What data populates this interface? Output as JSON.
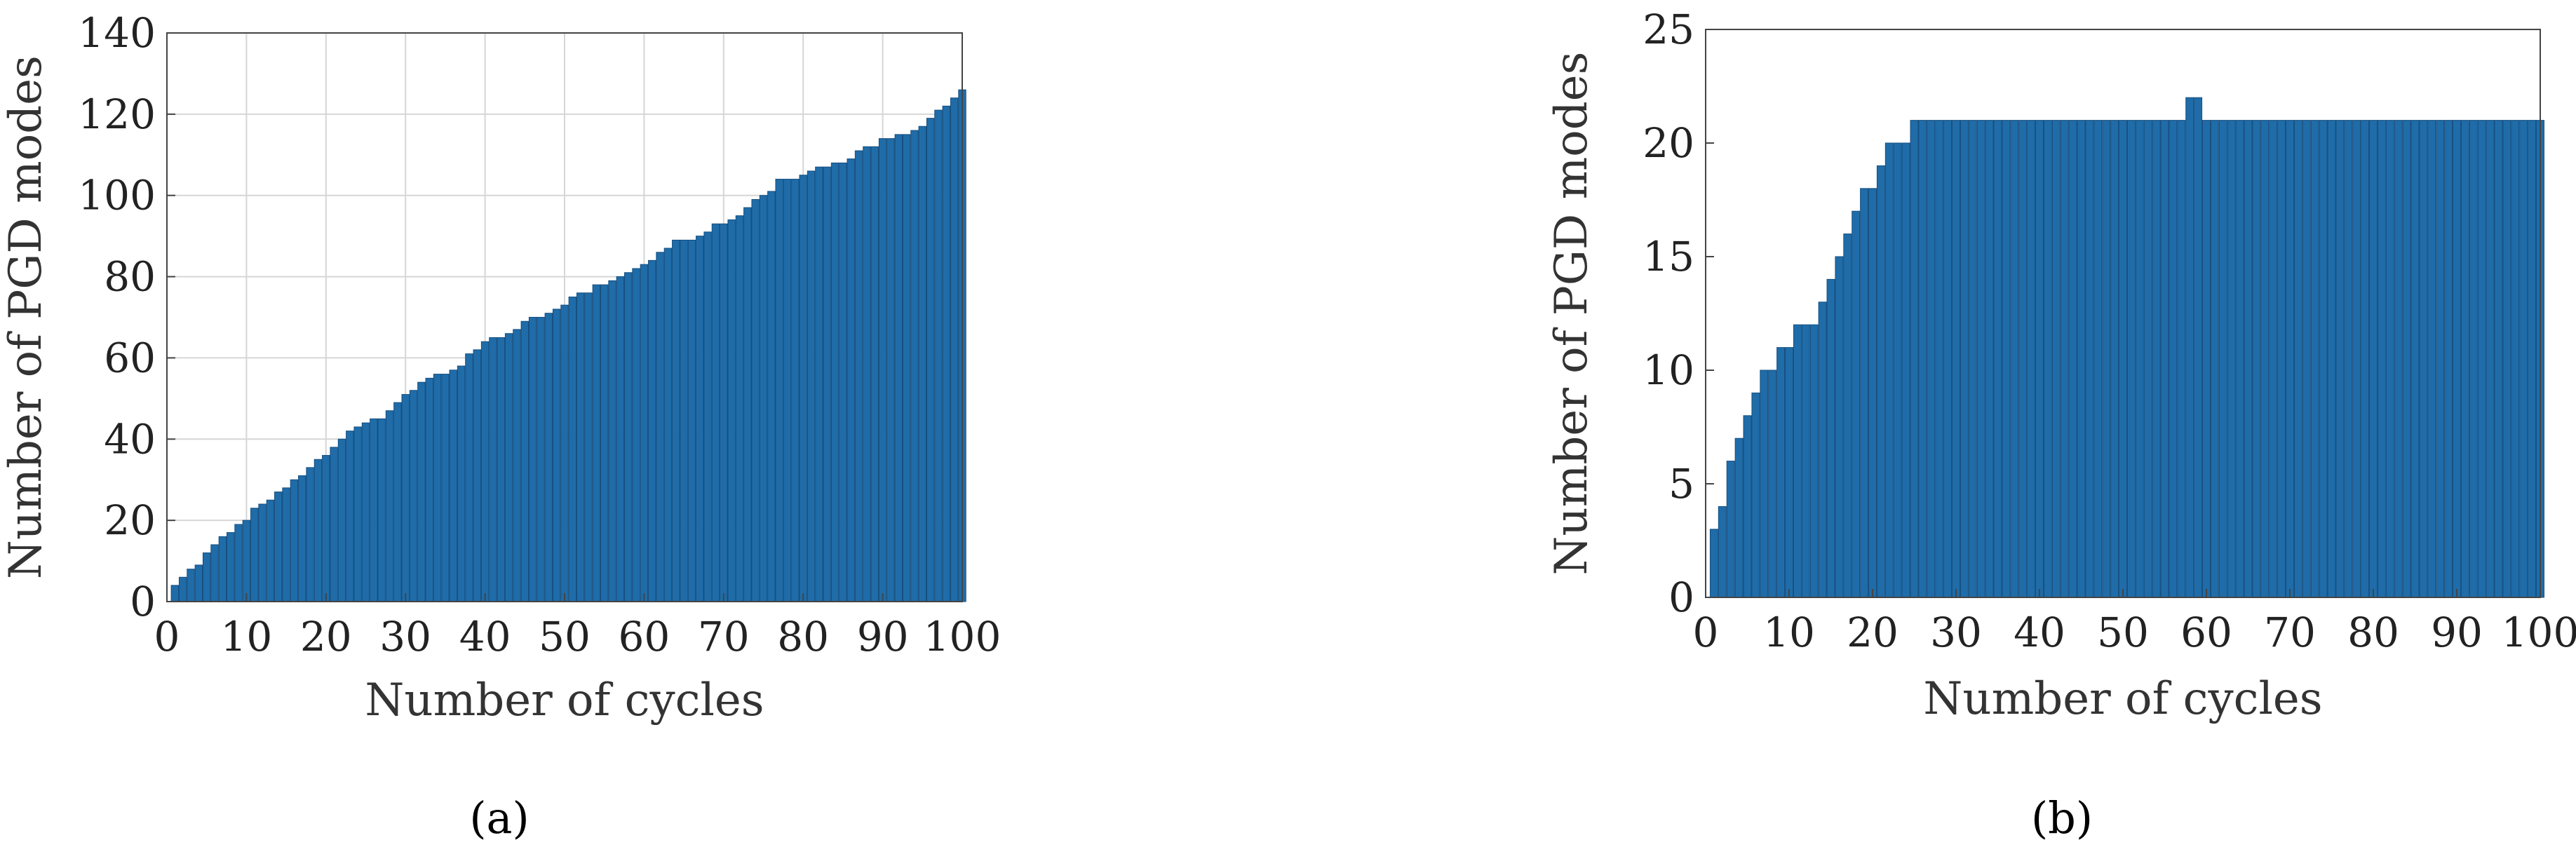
{
  "colors": {
    "bar": "#1f6ca8",
    "bar_edge": "#164f80",
    "grid": "#d6d6d6",
    "axis": "#444444"
  },
  "chart_data": [
    {
      "type": "bar",
      "caption": "(a)",
      "xlabel": "Number of cycles",
      "ylabel": "Number of PGD modes",
      "xlim": [
        0,
        100
      ],
      "ylim": [
        0,
        140
      ],
      "xticks": [
        0,
        10,
        20,
        30,
        40,
        50,
        60,
        70,
        80,
        90,
        100
      ],
      "yticks": [
        0,
        20,
        40,
        60,
        80,
        100,
        120,
        140
      ],
      "grid": true,
      "x": [
        1,
        2,
        3,
        4,
        5,
        6,
        7,
        8,
        9,
        10,
        11,
        12,
        13,
        14,
        15,
        16,
        17,
        18,
        19,
        20,
        21,
        22,
        23,
        24,
        25,
        26,
        27,
        28,
        29,
        30,
        31,
        32,
        33,
        34,
        35,
        36,
        37,
        38,
        39,
        40,
        41,
        42,
        43,
        44,
        45,
        46,
        47,
        48,
        49,
        50,
        51,
        52,
        53,
        54,
        55,
        56,
        57,
        58,
        59,
        60,
        61,
        62,
        63,
        64,
        65,
        66,
        67,
        68,
        69,
        70,
        71,
        72,
        73,
        74,
        75,
        76,
        77,
        78,
        79,
        80,
        81,
        82,
        83,
        84,
        85,
        86,
        87,
        88,
        89,
        90,
        91,
        92,
        93,
        94,
        95,
        96,
        97,
        98,
        99,
        100
      ],
      "values": [
        4,
        6,
        8,
        9,
        12,
        14,
        16,
        17,
        19,
        20,
        23,
        24,
        25,
        27,
        28,
        30,
        31,
        33,
        35,
        36,
        38,
        40,
        42,
        43,
        44,
        45,
        45,
        47,
        49,
        51,
        52,
        54,
        55,
        56,
        56,
        57,
        58,
        61,
        62,
        64,
        65,
        65,
        66,
        67,
        69,
        70,
        70,
        71,
        72,
        73,
        75,
        76,
        76,
        78,
        78,
        79,
        80,
        81,
        82,
        83,
        84,
        86,
        87,
        89,
        89,
        89,
        90,
        91,
        93,
        93,
        94,
        95,
        97,
        99,
        100,
        101,
        104,
        104,
        104,
        105,
        106,
        107,
        107,
        108,
        108,
        109,
        111,
        112,
        112,
        114,
        114,
        115,
        115,
        116,
        117,
        119,
        121,
        122,
        124,
        126
      ]
    },
    {
      "type": "bar",
      "caption": "(b)",
      "xlabel": "Number of cycles",
      "ylabel": "Number of PGD modes",
      "xlim": [
        0,
        100
      ],
      "ylim": [
        0,
        25
      ],
      "xticks": [
        0,
        10,
        20,
        30,
        40,
        50,
        60,
        70,
        80,
        90,
        100
      ],
      "yticks": [
        0,
        5,
        10,
        15,
        20,
        25
      ],
      "grid": false,
      "x": [
        1,
        2,
        3,
        4,
        5,
        6,
        7,
        8,
        9,
        10,
        11,
        12,
        13,
        14,
        15,
        16,
        17,
        18,
        19,
        20,
        21,
        22,
        23,
        24,
        25,
        26,
        27,
        28,
        29,
        30,
        31,
        32,
        33,
        34,
        35,
        36,
        37,
        38,
        39,
        40,
        41,
        42,
        43,
        44,
        45,
        46,
        47,
        48,
        49,
        50,
        51,
        52,
        53,
        54,
        55,
        56,
        57,
        58,
        59,
        60,
        61,
        62,
        63,
        64,
        65,
        66,
        67,
        68,
        69,
        70,
        71,
        72,
        73,
        74,
        75,
        76,
        77,
        78,
        79,
        80,
        81,
        82,
        83,
        84,
        85,
        86,
        87,
        88,
        89,
        90,
        91,
        92,
        93,
        94,
        95,
        96,
        97,
        98,
        99,
        100
      ],
      "values": [
        3,
        4,
        6,
        7,
        8,
        9,
        10,
        10,
        11,
        11,
        12,
        12,
        12,
        13,
        14,
        15,
        16,
        17,
        18,
        18,
        19,
        20,
        20,
        20,
        21,
        21,
        21,
        21,
        21,
        21,
        21,
        21,
        21,
        21,
        21,
        21,
        21,
        21,
        21,
        21,
        21,
        21,
        21,
        21,
        21,
        21,
        21,
        21,
        21,
        21,
        21,
        21,
        21,
        21,
        21,
        21,
        21,
        22,
        22,
        21,
        21,
        21,
        21,
        21,
        21,
        21,
        21,
        21,
        21,
        21,
        21,
        21,
        21,
        21,
        21,
        21,
        21,
        21,
        21,
        21,
        21,
        21,
        21,
        21,
        21,
        21,
        21,
        21,
        21,
        21,
        21,
        21,
        21,
        21,
        21,
        21,
        21,
        21,
        21,
        21
      ]
    }
  ]
}
